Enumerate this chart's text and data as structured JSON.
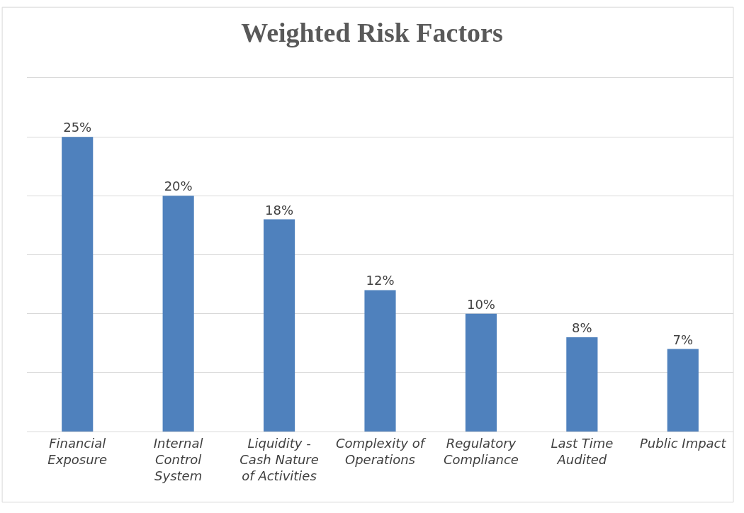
{
  "chart_data": {
    "type": "bar",
    "title": "Weighted Risk Factors",
    "categories": [
      "Financial\nExposure",
      "Internal\nControl\nSystem",
      "Liquidity -\nCash Nature\nof Activities",
      "Complexity of\nOperations",
      "Regulatory\nCompliance",
      "Last Time\nAudited",
      "Public Impact"
    ],
    "values": [
      25,
      20,
      18,
      12,
      10,
      8,
      7
    ],
    "value_labels": [
      "25%",
      "20%",
      "18%",
      "12%",
      "10%",
      "8%",
      "7%"
    ],
    "color": "#4f81bd",
    "ylim": [
      0,
      30
    ],
    "yticks": [
      {
        "value": 0,
        "label": null
      },
      {
        "value": 5,
        "label": null
      },
      {
        "value": 10,
        "label": null
      },
      {
        "value": 15,
        "label": null
      },
      {
        "value": 20,
        "label": null
      },
      {
        "value": 25,
        "label": null
      },
      {
        "value": 30,
        "label": null
      }
    ],
    "grid": "y",
    "tick_labels": "x",
    "legend": false
  }
}
